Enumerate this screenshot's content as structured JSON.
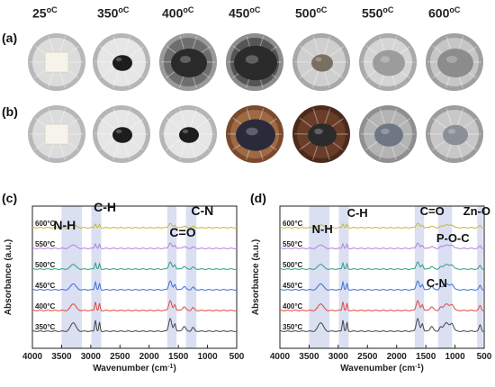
{
  "temperatures": [
    {
      "value": "25",
      "unit": "oC"
    },
    {
      "value": "350",
      "unit": "oC"
    },
    {
      "value": "400",
      "unit": "oC"
    },
    {
      "value": "450",
      "unit": "oC"
    },
    {
      "value": "500",
      "unit": "oC"
    },
    {
      "value": "550",
      "unit": "oC"
    },
    {
      "value": "600",
      "unit": "oC"
    }
  ],
  "panels": {
    "a": "(a)",
    "b": "(b)",
    "c": "(c)",
    "d": "(d)"
  },
  "photo_rows": {
    "a": [
      "foil-with-white-sample",
      "foil-with-black-blob",
      "foil-dark-charred",
      "foil-dark-charred-large",
      "foil-crumpled-residue",
      "foil-crumpled-ash",
      "foil-crumpled-grey"
    ],
    "b": [
      "foil-with-white-sample",
      "foil-with-black-blob",
      "foil-with-black-blob",
      "foil-brown-charred",
      "foil-brown-dark",
      "foil-grey-residue",
      "foil-grey-residue-light"
    ]
  },
  "colors": {
    "350": "#444444",
    "400": "#e0473c",
    "450": "#3b6fd4",
    "500": "#2e9e7a",
    "550": "#b07fe0",
    "600": "#c8b62e",
    "band": "#cdd4ee"
  },
  "chart_data": [
    {
      "type": "line",
      "panel": "(c)",
      "xlabel": "Wavenumber (cm-1)",
      "ylabel": "Absorbance (a.u.)",
      "xlim": [
        4000,
        500
      ],
      "xticks": [
        4000,
        3500,
        3000,
        2500,
        2000,
        1500,
        1000,
        500
      ],
      "series_labels": [
        "600°C",
        "550°C",
        "500°C",
        "450°C",
        "400°C",
        "350°C"
      ],
      "annotations": [
        "N-H",
        "C-H",
        "C=O",
        "C-N"
      ],
      "bands": [
        [
          3500,
          3150
        ],
        [
          2990,
          2820
        ],
        [
          1690,
          1530
        ],
        [
          1370,
          1190
        ]
      ]
    },
    {
      "type": "line",
      "panel": "(d)",
      "xlabel": "Wavenumber (cm-1)",
      "ylabel": "Absorbance (a.u.)",
      "xlim": [
        4000,
        500
      ],
      "xticks": [
        4000,
        3500,
        3000,
        2500,
        2000,
        1500,
        1000,
        500
      ],
      "series_labels": [
        "600°C",
        "550°C",
        "500°C",
        "450°C",
        "400°C",
        "350°C"
      ],
      "annotations": [
        "N-H",
        "C-H",
        "C=O",
        "Zn-O",
        "P-O-C",
        "C-N"
      ],
      "bands": [
        [
          3500,
          3150
        ],
        [
          2990,
          2820
        ],
        [
          1690,
          1530
        ],
        [
          1290,
          1050
        ],
        [
          620,
          520
        ]
      ]
    }
  ]
}
